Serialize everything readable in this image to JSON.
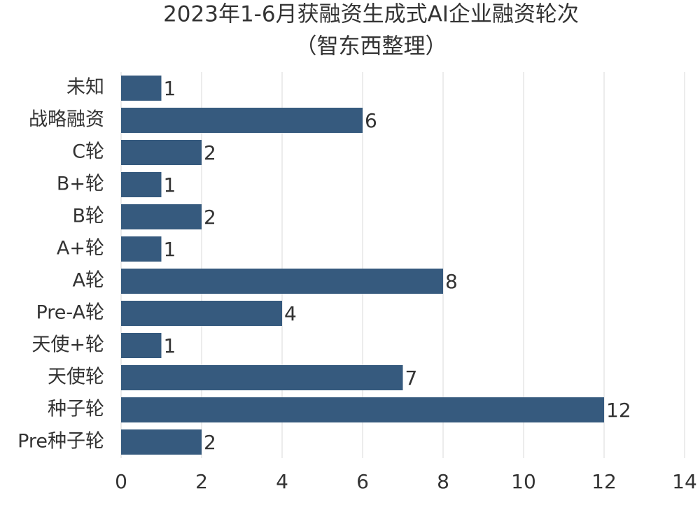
{
  "chart_data": {
    "type": "barh",
    "title": "2023年1-6月获融资生成式AI企业融资轮次",
    "subtitle": "（智东西整理）",
    "categories": [
      "未知",
      "战略融资",
      "C轮",
      "B+轮",
      "B轮",
      "A+轮",
      "A轮",
      "Pre-A轮",
      "天使+轮",
      "天使轮",
      "种子轮",
      "Pre种子轮"
    ],
    "values": [
      1,
      6,
      2,
      1,
      2,
      1,
      8,
      4,
      1,
      7,
      12,
      2
    ],
    "color": "#365a7e",
    "xlim": [
      0,
      14
    ],
    "xticks": [
      0,
      2,
      4,
      6,
      8,
      10,
      12,
      14
    ],
    "grid": true
  }
}
